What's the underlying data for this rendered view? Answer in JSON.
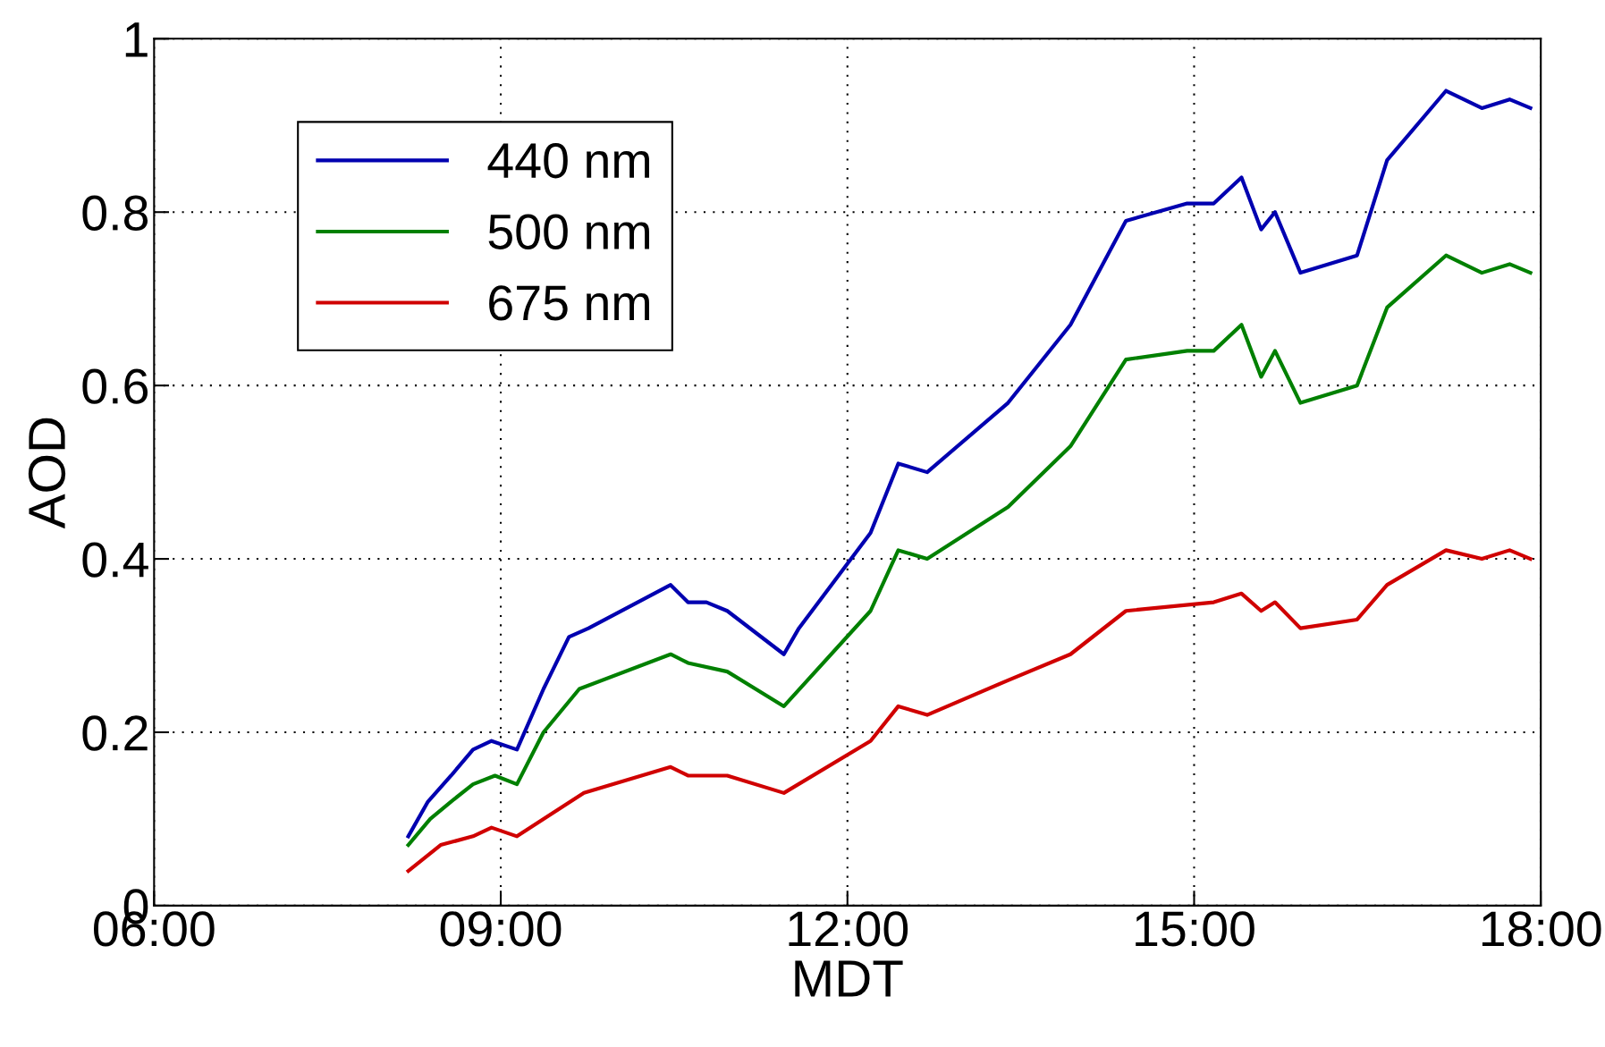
{
  "chart_data": {
    "type": "line",
    "xlabel": "MDT",
    "ylabel": "AOD",
    "xlim": [
      6,
      18
    ],
    "xticks": [
      {
        "value": 6,
        "label": "06:00"
      },
      {
        "value": 9,
        "label": "09:00"
      },
      {
        "value": 12,
        "label": "12:00"
      },
      {
        "value": 15,
        "label": "15:00"
      },
      {
        "value": 18,
        "label": "18:00"
      }
    ],
    "ylim": [
      0,
      1
    ],
    "yticks": [
      0,
      0.2,
      0.4,
      0.6,
      0.8,
      1
    ],
    "grid": true,
    "legend": "top left",
    "line_style": "solid",
    "series": [
      {
        "name": "440 nm",
        "color": "#0000b0",
        "x": [
          8.2,
          8.37,
          8.57,
          8.76,
          8.92,
          9.14,
          9.37,
          9.59,
          9.76,
          10.47,
          10.62,
          10.78,
          10.96,
          11.45,
          11.58,
          12.2,
          12.44,
          12.69,
          13.39,
          13.93,
          14.41,
          14.94,
          15.17,
          15.41,
          15.58,
          15.7,
          15.92,
          16.41,
          16.67,
          17.18,
          17.49,
          17.73,
          17.91
        ],
        "values": [
          0.08,
          0.12,
          0.15,
          0.18,
          0.19,
          0.18,
          0.25,
          0.31,
          0.32,
          0.37,
          0.35,
          0.35,
          0.34,
          0.29,
          0.32,
          0.43,
          0.51,
          0.5,
          0.58,
          0.67,
          0.79,
          0.81,
          0.81,
          0.84,
          0.78,
          0.8,
          0.73,
          0.75,
          0.86,
          0.94,
          0.92,
          0.93,
          0.92
        ]
      },
      {
        "name": "500 nm",
        "color": "#008000",
        "x": [
          8.2,
          8.39,
          8.57,
          8.76,
          8.95,
          9.14,
          9.37,
          9.68,
          10.47,
          10.62,
          10.96,
          11.45,
          12.2,
          12.44,
          12.69,
          13.39,
          13.93,
          14.41,
          14.94,
          15.17,
          15.41,
          15.58,
          15.7,
          15.92,
          16.41,
          16.67,
          17.18,
          17.49,
          17.73,
          17.91
        ],
        "values": [
          0.07,
          0.1,
          0.12,
          0.14,
          0.15,
          0.14,
          0.2,
          0.25,
          0.29,
          0.28,
          0.27,
          0.23,
          0.34,
          0.41,
          0.4,
          0.46,
          0.53,
          0.63,
          0.64,
          0.64,
          0.67,
          0.61,
          0.64,
          0.58,
          0.6,
          0.69,
          0.75,
          0.73,
          0.74,
          0.73
        ]
      },
      {
        "name": "675 nm",
        "color": "#d00000",
        "x": [
          8.2,
          8.48,
          8.76,
          8.92,
          9.14,
          9.37,
          9.72,
          10.47,
          10.62,
          10.96,
          11.45,
          12.2,
          12.44,
          12.69,
          13.39,
          13.93,
          14.41,
          15.17,
          15.41,
          15.58,
          15.7,
          15.92,
          16.41,
          16.67,
          17.18,
          17.49,
          17.73,
          17.91
        ],
        "values": [
          0.04,
          0.07,
          0.08,
          0.09,
          0.08,
          0.1,
          0.13,
          0.16,
          0.15,
          0.15,
          0.13,
          0.19,
          0.23,
          0.22,
          0.26,
          0.29,
          0.34,
          0.35,
          0.36,
          0.34,
          0.35,
          0.32,
          0.33,
          0.37,
          0.41,
          0.4,
          0.41,
          0.4
        ]
      }
    ]
  }
}
